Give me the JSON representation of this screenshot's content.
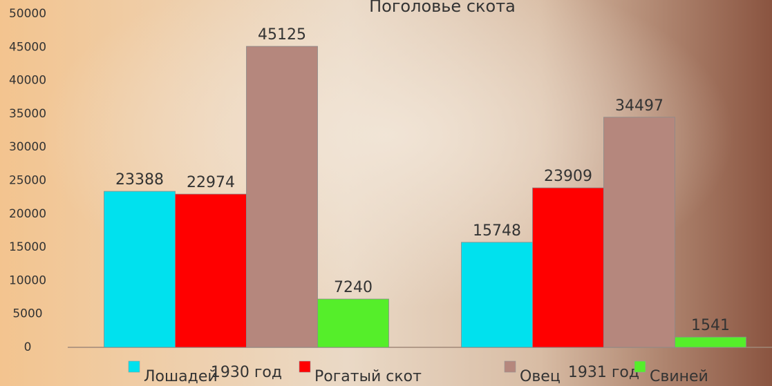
{
  "chart_data": {
    "type": "bar",
    "title": "Поголовье скота",
    "categories": [
      "1930 год",
      "1931 год"
    ],
    "series": [
      {
        "name": "Лошадей",
        "color": "#00e1ee",
        "values": [
          23388,
          15748
        ]
      },
      {
        "name": "Рогатый скот",
        "color": "#ff0000",
        "values": [
          22974,
          23909
        ]
      },
      {
        "name": "Овец",
        "color": "#b5877d",
        "values": [
          45125,
          34497
        ]
      },
      {
        "name": "Свиней",
        "color": "#55ee2a",
        "values": [
          7240,
          1541
        ]
      }
    ],
    "ylim": [
      0,
      50000
    ],
    "yticks": [
      0,
      5000,
      10000,
      15000,
      20000,
      25000,
      30000,
      35000,
      40000,
      45000,
      50000
    ],
    "legend": "bottom"
  }
}
